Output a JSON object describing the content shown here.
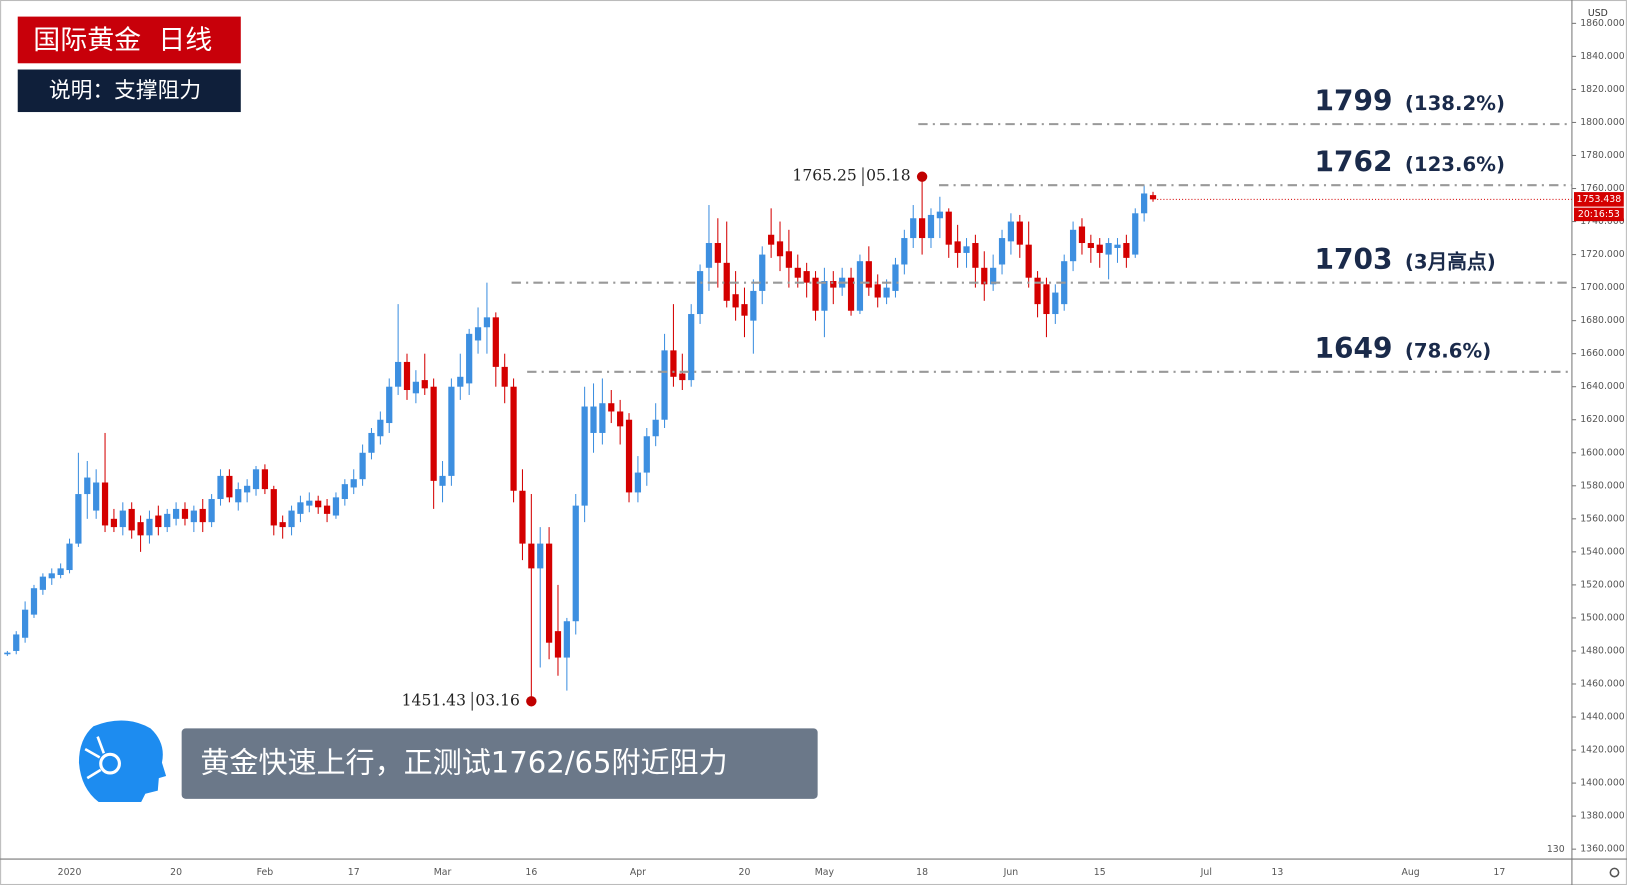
{
  "header": {
    "title": "国际黄金  日线",
    "subtitle": "说明：支撑阻力"
  },
  "caption": "黄金快速上行，正测试1762/65附近阻力",
  "chart_data": {
    "type": "candlestick",
    "currency": "USD",
    "up_color": "#3d8fe0",
    "down_color": "#d40000",
    "categories": [
      null,
      null,
      null,
      null,
      null,
      null,
      null,
      "2020",
      null,
      null,
      null,
      null,
      null,
      null,
      null,
      null,
      null,
      null,
      null,
      "20",
      null,
      null,
      null,
      null,
      null,
      null,
      null,
      null,
      null,
      "Feb",
      null,
      null,
      null,
      null,
      null,
      null,
      null,
      null,
      null,
      "17",
      null,
      null,
      null,
      null,
      null,
      null,
      null,
      null,
      null,
      "Mar",
      null,
      null,
      null,
      null,
      null,
      null,
      null,
      null,
      null,
      "16",
      null,
      null,
      null,
      null,
      null,
      null,
      null,
      null,
      null,
      null,
      null,
      "Apr",
      null,
      null,
      null,
      null,
      null,
      null,
      null,
      null,
      null,
      null,
      null,
      "20",
      null,
      null,
      null,
      null,
      null,
      null,
      null,
      null,
      "May",
      null,
      null,
      null,
      null,
      null,
      null,
      null,
      null,
      null,
      null,
      "18",
      null,
      null,
      null,
      null,
      null,
      null,
      null,
      null,
      null,
      "Jun",
      null,
      null,
      null,
      null,
      null,
      null,
      null,
      null,
      null,
      "15",
      null,
      null,
      null,
      null,
      null,
      null,
      null,
      null,
      null,
      null,
      null,
      "Jul",
      null,
      null,
      null,
      null,
      null,
      null,
      null,
      "13",
      null,
      null,
      null,
      null,
      null,
      null,
      null,
      null,
      null,
      null,
      null,
      null,
      null,
      null,
      "Aug",
      null,
      null,
      null,
      null,
      null,
      null,
      null,
      null,
      null,
      "17",
      null,
      null,
      null,
      null,
      null,
      null,
      null
    ],
    "open": [
      1478,
      1480,
      1488,
      1502,
      1517,
      1524,
      1526,
      1529,
      1545,
      1575,
      1565,
      1582,
      1560,
      1555,
      1566,
      1558,
      1550,
      1562,
      1555,
      1560,
      1566,
      1558,
      1566,
      1558,
      1572,
      1586,
      1570,
      1576,
      1578,
      1590,
      1578,
      1558,
      1555,
      1563,
      1568,
      1571,
      1568,
      1562,
      1572,
      1579,
      1584,
      1600,
      1610,
      1618,
      1640,
      1655,
      1636,
      1644,
      1640,
      1580,
      1586,
      1640,
      1642,
      1668,
      1676,
      1682,
      1652,
      1640,
      1577,
      1545,
      1530,
      1545,
      1492,
      1476,
      1498,
      1568,
      1612,
      1612,
      1630,
      1625,
      1620,
      1576,
      1588,
      1610,
      1620,
      1662,
      1648,
      1644,
      1684,
      1712,
      1727,
      1715,
      1696,
      1690,
      1680,
      1698,
      1732,
      1728,
      1722,
      1712,
      1710,
      1706,
      1686,
      1704,
      1700,
      1706,
      1686,
      1716,
      1702,
      1694,
      1698,
      1714,
      1730,
      1742,
      1730,
      1742,
      1746,
      1728,
      1721,
      1727,
      1712,
      1702,
      1714,
      1728,
      1740,
      1726,
      1706,
      1702,
      1684,
      1690,
      1716,
      1737,
      1727,
      1726,
      1720,
      1724,
      1727,
      1720,
      1745,
      1756,
      null,
      null,
      null,
      null,
      null,
      null,
      null,
      null,
      null,
      null,
      null,
      null,
      null,
      null,
      null,
      null,
      null,
      null,
      null,
      null,
      null,
      null,
      null,
      null,
      null,
      null,
      null,
      null,
      null,
      null,
      null,
      null,
      null,
      null,
      null,
      null,
      null,
      null,
      null,
      null,
      null,
      null,
      null,
      null,
      null,
      null
    ],
    "high": [
      1480,
      1492,
      1510,
      1520,
      1527,
      1530,
      1533,
      1548,
      1600,
      1595,
      1590,
      1612,
      1566,
      1570,
      1570,
      1562,
      1565,
      1568,
      1566,
      1570,
      1570,
      1568,
      1572,
      1575,
      1590,
      1590,
      1582,
      1584,
      1592,
      1593,
      1580,
      1562,
      1568,
      1574,
      1576,
      1574,
      1572,
      1576,
      1584,
      1590,
      1605,
      1615,
      1625,
      1645,
      1690,
      1660,
      1650,
      1660,
      1645,
      1595,
      1645,
      1660,
      1675,
      1688,
      1703,
      1685,
      1660,
      1645,
      1590,
      1575,
      1555,
      1555,
      1520,
      1500,
      1575,
      1640,
      1642,
      1645,
      1638,
      1632,
      1624,
      1598,
      1615,
      1630,
      1672,
      1690,
      1660,
      1690,
      1714,
      1750,
      1742,
      1740,
      1710,
      1700,
      1705,
      1725,
      1748,
      1740,
      1735,
      1720,
      1715,
      1710,
      1712,
      1710,
      1712,
      1712,
      1720,
      1725,
      1708,
      1705,
      1718,
      1735,
      1750,
      1765.25,
      1748,
      1755,
      1748,
      1738,
      1730,
      1732,
      1722,
      1720,
      1735,
      1745,
      1744,
      1740,
      1710,
      1706,
      1702,
      1720,
      1740,
      1742,
      1732,
      1730,
      1730,
      1730,
      1732,
      1748,
      1762,
      1758,
      null,
      null,
      null,
      null,
      null,
      null,
      null,
      null,
      null,
      null,
      null,
      null,
      null,
      null,
      null,
      null,
      null,
      null,
      null,
      null,
      null,
      null,
      null,
      null,
      null,
      null,
      null,
      null,
      null,
      null,
      null,
      null,
      null,
      null,
      null,
      null,
      null,
      null,
      null,
      null,
      null,
      null,
      null,
      null,
      null,
      null
    ],
    "low": [
      1477,
      1478,
      1485,
      1500,
      1514,
      1520,
      1524,
      1527,
      1543,
      1560,
      1560,
      1552,
      1552,
      1550,
      1548,
      1540,
      1545,
      1550,
      1552,
      1556,
      1556,
      1552,
      1552,
      1555,
      1568,
      1570,
      1565,
      1570,
      1574,
      1575,
      1550,
      1548,
      1550,
      1558,
      1564,
      1563,
      1558,
      1560,
      1568,
      1575,
      1580,
      1596,
      1605,
      1612,
      1635,
      1632,
      1630,
      1635,
      1566,
      1570,
      1580,
      1632,
      1635,
      1660,
      1660,
      1640,
      1630,
      1570,
      1535,
      1451.43,
      1470,
      1475,
      1465,
      1456,
      1490,
      1558,
      1600,
      1605,
      1618,
      1605,
      1570,
      1570,
      1580,
      1604,
      1615,
      1640,
      1638,
      1640,
      1678,
      1698,
      1700,
      1688,
      1680,
      1670,
      1660,
      1690,
      1718,
      1710,
      1700,
      1700,
      1694,
      1680,
      1670,
      1690,
      1695,
      1683,
      1684,
      1695,
      1688,
      1690,
      1694,
      1708,
      1724,
      1720,
      1724,
      1730,
      1718,
      1712,
      1712,
      1700,
      1692,
      1698,
      1708,
      1720,
      1718,
      1700,
      1682,
      1670,
      1678,
      1686,
      1710,
      1720,
      1715,
      1712,
      1705,
      1715,
      1712,
      1718,
      1740,
      1752,
      null,
      null,
      null,
      null,
      null,
      null,
      null,
      null,
      null,
      null,
      null,
      null,
      null,
      null,
      null,
      null,
      null,
      null,
      null,
      null,
      null,
      null,
      null,
      null,
      null,
      null,
      null,
      null,
      null,
      null,
      null,
      null,
      null,
      null,
      null,
      null,
      null,
      null,
      null,
      null,
      null,
      null,
      null,
      null,
      null,
      null
    ],
    "close": [
      1479,
      1490,
      1505,
      1518,
      1525,
      1527,
      1530,
      1545,
      1575,
      1585,
      1582,
      1556,
      1555,
      1565,
      1553,
      1550,
      1560,
      1555,
      1563,
      1566,
      1560,
      1565,
      1558,
      1572,
      1586,
      1573,
      1578,
      1580,
      1590,
      1578,
      1556,
      1555,
      1565,
      1570,
      1571,
      1567,
      1563,
      1573,
      1581,
      1584,
      1600,
      1612,
      1620,
      1640,
      1655,
      1638,
      1643,
      1639,
      1583,
      1586,
      1640,
      1646,
      1672,
      1676,
      1682,
      1652,
      1640,
      1577,
      1545,
      1530,
      1545,
      1485,
      1476,
      1498,
      1568,
      1628,
      1628,
      1630,
      1625,
      1616,
      1576,
      1588,
      1610,
      1620,
      1662,
      1646,
      1644,
      1684,
      1710,
      1727,
      1715,
      1692,
      1688,
      1683,
      1698,
      1720,
      1726,
      1719,
      1712,
      1706,
      1703,
      1686,
      1704,
      1700,
      1706,
      1686,
      1716,
      1700,
      1694,
      1700,
      1714,
      1730,
      1742,
      1730,
      1744,
      1746,
      1726,
      1721,
      1725,
      1712,
      1702,
      1712,
      1730,
      1740,
      1726,
      1706,
      1690,
      1684,
      1697,
      1716,
      1735,
      1727,
      1724,
      1721,
      1727,
      1726,
      1718,
      1745,
      1757,
      1753.438,
      null,
      null,
      null,
      null,
      null,
      null,
      null,
      null,
      null,
      null,
      null,
      null,
      null,
      null,
      null,
      null,
      null,
      null,
      null,
      null,
      null,
      null,
      null,
      null,
      null,
      null,
      null,
      null,
      null,
      null,
      null,
      null,
      null,
      null,
      null,
      null,
      null,
      null,
      null,
      null,
      null,
      null,
      null,
      null,
      null,
      null
    ],
    "ylim": [
      1354,
      1871
    ],
    "yticks": [
      {
        "value": 1360,
        "label": "1360.000"
      },
      {
        "value": 1380,
        "label": "1380.000"
      },
      {
        "value": 1400,
        "label": "1400.000"
      },
      {
        "value": 1420,
        "label": "1420.000"
      },
      {
        "value": 1440,
        "label": "1440.000"
      },
      {
        "value": 1460,
        "label": "1460.000"
      },
      {
        "value": 1480,
        "label": "1480.000"
      },
      {
        "value": 1500,
        "label": "1500.000"
      },
      {
        "value": 1520,
        "label": "1520.000"
      },
      {
        "value": 1540,
        "label": "1540.000"
      },
      {
        "value": 1560,
        "label": "1560.000"
      },
      {
        "value": 1580,
        "label": "1580.000"
      },
      {
        "value": 1600,
        "label": "1600.000"
      },
      {
        "value": 1620,
        "label": "1620.000"
      },
      {
        "value": 1640,
        "label": "1640.000"
      },
      {
        "value": 1660,
        "label": "1660.000"
      },
      {
        "value": 1680,
        "label": "1680.000"
      },
      {
        "value": 1700,
        "label": "1700.000"
      },
      {
        "value": 1720,
        "label": "1720.000"
      },
      {
        "value": 1740,
        "label": "1740.000"
      },
      {
        "value": 1760,
        "label": "1760.000"
      },
      {
        "value": 1780,
        "label": "1780.000"
      },
      {
        "value": 1800,
        "label": "1800.000"
      },
      {
        "value": 1820,
        "label": "1820.000"
      },
      {
        "value": 1840,
        "label": "1840.000"
      },
      {
        "value": 1860,
        "label": "1860.000"
      }
    ],
    "last_price": 1753.438,
    "countdown": "20:16:53",
    "axis_note": "130",
    "levels": [
      {
        "value": 1799,
        "note": "(138.2%)"
      },
      {
        "value": 1762,
        "note": "(123.6%)"
      },
      {
        "value": 1703,
        "note": "(3月高点)"
      },
      {
        "value": 1649,
        "note": "(78.6%)"
      }
    ],
    "annotations": [
      {
        "price": 1765.25,
        "date": "05.18"
      },
      {
        "price": 1451.43,
        "date": "03.16"
      }
    ]
  }
}
